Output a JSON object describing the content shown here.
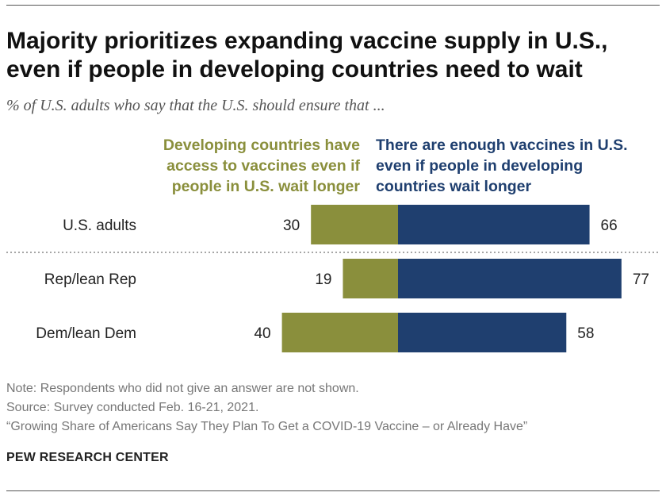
{
  "header": {
    "title_line1": "Majority prioritizes expanding vaccine supply in U.S.,",
    "title_line2": "even if people in developing countries need to wait",
    "subtitle": "% of U.S. adults who say that the U.S. should ensure that ..."
  },
  "legend": {
    "left": [
      "Developing countries have",
      "access to vaccines even if",
      "people in U.S. wait longer"
    ],
    "right": [
      "There are enough vaccines in U.S.",
      "even if people in developing",
      "countries wait longer"
    ]
  },
  "colors": {
    "left": "#8a8f3c",
    "right": "#1f3f6f"
  },
  "chart_data": {
    "type": "bar",
    "orientation": "horizontal-diverging",
    "categories": [
      "U.S. adults",
      "Rep/lean Rep",
      "Dem/lean Dem"
    ],
    "series": [
      {
        "name": "Developing countries have access to vaccines even if people in U.S. wait longer",
        "values": [
          30,
          19,
          40
        ]
      },
      {
        "name": "There are enough vaccines in U.S. even if people in developing countries wait longer",
        "values": [
          66,
          77,
          58
        ]
      }
    ],
    "title": "Majority prioritizes expanding vaccine supply in U.S., even if people in developing countries need to wait",
    "xlabel": "",
    "ylabel": "",
    "xlim": [
      -40,
      77
    ]
  },
  "footer": {
    "note": "Note: Respondents who did not give an answer are not shown.",
    "source": "Source: Survey conducted Feb. 16-21, 2021.",
    "report": "“Growing Share of Americans Say They Plan To Get a COVID-19 Vaccine – or Already Have”",
    "org": "PEW RESEARCH CENTER"
  }
}
